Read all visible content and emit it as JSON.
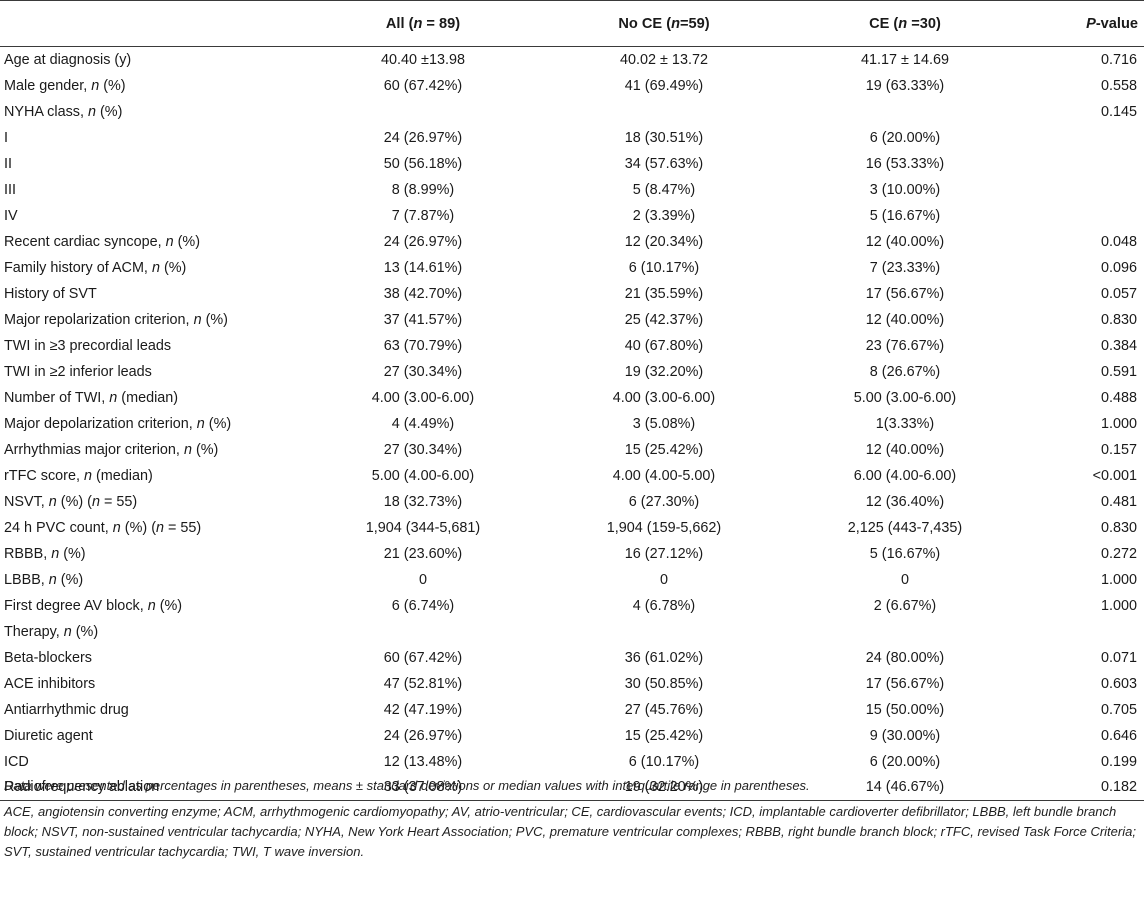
{
  "header": {
    "col0": "",
    "col1": "All (n = 89)",
    "col2": "No CE (n=59)",
    "col3": "CE (n =30)",
    "col4": "P-value"
  },
  "rows": [
    [
      "Age at diagnosis (y)",
      "40.40 ±13.98",
      "40.02 ± 13.72",
      "41.17 ± 14.69",
      "0.716"
    ],
    [
      "Male gender, n (%)",
      "60 (67.42%)",
      "41 (69.49%)",
      "19 (63.33%)",
      "0.558"
    ],
    [
      "NYHA class, n (%)",
      "",
      "",
      "",
      "0.145"
    ],
    [
      "I",
      "24 (26.97%)",
      "18 (30.51%)",
      "6 (20.00%)",
      ""
    ],
    [
      "II",
      "50 (56.18%)",
      "34 (57.63%)",
      "16 (53.33%)",
      ""
    ],
    [
      "III",
      "8 (8.99%)",
      "5 (8.47%)",
      "3 (10.00%)",
      ""
    ],
    [
      "IV",
      "7 (7.87%)",
      "2 (3.39%)",
      "5 (16.67%)",
      ""
    ],
    [
      "Recent cardiac syncope, n (%)",
      "24 (26.97%)",
      "12 (20.34%)",
      "12 (40.00%)",
      "0.048"
    ],
    [
      "Family history of ACM, n (%)",
      "13 (14.61%)",
      "6 (10.17%)",
      "7 (23.33%)",
      "0.096"
    ],
    [
      "History of SVT",
      "38 (42.70%)",
      "21 (35.59%)",
      "17 (56.67%)",
      "0.057"
    ],
    [
      "Major repolarization criterion, n (%)",
      "37 (41.57%)",
      "25 (42.37%)",
      "12 (40.00%)",
      "0.830"
    ],
    [
      "TWI in ≥3 precordial leads",
      "63 (70.79%)",
      "40 (67.80%)",
      "23 (76.67%)",
      "0.384"
    ],
    [
      "TWI in ≥2 inferior leads",
      "27 (30.34%)",
      "19 (32.20%)",
      "8 (26.67%)",
      "0.591"
    ],
    [
      "Number of TWI, n (median)",
      "4.00 (3.00-6.00)",
      "4.00 (3.00-6.00)",
      "5.00 (3.00-6.00)",
      "0.488"
    ],
    [
      "Major depolarization criterion, n (%)",
      "4 (4.49%)",
      "3 (5.08%)",
      "1(3.33%)",
      "1.000"
    ],
    [
      "Arrhythmias major criterion, n (%)",
      "27 (30.34%)",
      "15 (25.42%)",
      "12 (40.00%)",
      "0.157"
    ],
    [
      "rTFC score, n (median)",
      "5.00 (4.00-6.00)",
      "4.00 (4.00-5.00)",
      "6.00 (4.00-6.00)",
      "<0.001"
    ],
    [
      "NSVT, n (%) (n = 55)",
      "18 (32.73%)",
      "6 (27.30%)",
      "12 (36.40%)",
      "0.481"
    ],
    [
      "24 h PVC count, n (%) (n = 55)",
      "1,904 (344-5,681)",
      "1,904 (159-5,662)",
      "2,125 (443-7,435)",
      "0.830"
    ],
    [
      "RBBB, n (%)",
      "21 (23.60%)",
      "16 (27.12%)",
      "5 (16.67%)",
      "0.272"
    ],
    [
      "LBBB, n (%)",
      "0",
      "0",
      "0",
      "1.000"
    ],
    [
      "First degree AV block, n (%)",
      "6 (6.74%)",
      "4 (6.78%)",
      "2 (6.67%)",
      "1.000"
    ],
    [
      "Therapy, n (%)",
      "",
      "",
      "",
      ""
    ],
    [
      "Beta-blockers",
      "60 (67.42%)",
      "36 (61.02%)",
      "24 (80.00%)",
      "0.071"
    ],
    [
      "ACE inhibitors",
      "47 (52.81%)",
      "30 (50.85%)",
      "17 (56.67%)",
      "0.603"
    ],
    [
      "Antiarrhythmic drug",
      "42 (47.19%)",
      "27 (45.76%)",
      "15 (50.00%)",
      "0.705"
    ],
    [
      "Diuretic agent",
      "24 (26.97%)",
      "15 (25.42%)",
      "9 (30.00%)",
      "0.646"
    ],
    [
      "ICD",
      "12 (13.48%)",
      "6 (10.17%)",
      "6 (20.00%)",
      "0.199"
    ],
    [
      "Radiofrequency ablation",
      "33 (37.08%)",
      "19 (32.20%)",
      "14 (46.67%)",
      "0.182"
    ]
  ],
  "footnotes": {
    "note1": "Data were presented as percentages in parentheses, means ± standard deviations or median values with interquartile range in parentheses.",
    "note2": "ACE, angiotensin converting enzyme; ACM, arrhythmogenic cardiomyopathy; AV, atrio-ventricular; CE, cardiovascular events; ICD, implantable cardioverter defibrillator; LBBB, left bundle branch block; NSVT, non-sustained ventricular tachycardia; NYHA, New York Heart Association; PVC, premature ventricular complexes; RBBB, right bundle branch block; rTFC, revised Task Force Criteria; SVT, sustained ventricular tachycardia; TWI, T wave inversion."
  }
}
